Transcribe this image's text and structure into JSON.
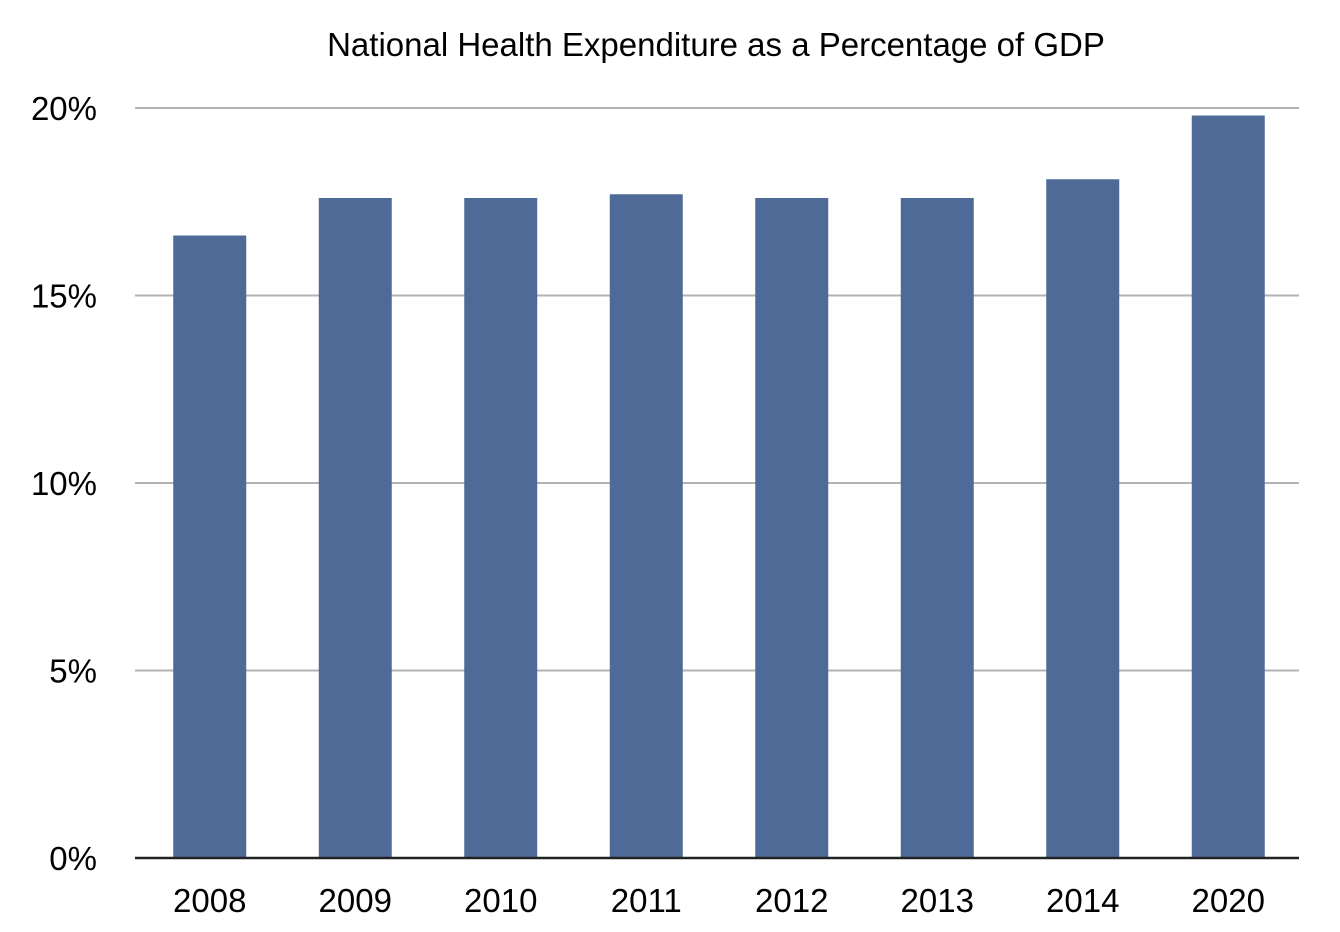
{
  "chart_data": {
    "type": "bar",
    "title": "National Health Expenditure as a Percentage of GDP",
    "xlabel": "",
    "ylabel": "",
    "categories": [
      "2008",
      "2009",
      "2010",
      "2011",
      "2012",
      "2013",
      "2014",
      "2020"
    ],
    "values": [
      16.6,
      17.6,
      17.6,
      17.7,
      17.6,
      17.6,
      18.1,
      19.8
    ],
    "ylim": [
      0,
      20
    ],
    "yticks": [
      0,
      5,
      10,
      15,
      20
    ],
    "ytick_labels": [
      "0%",
      "5%",
      "10%",
      "15%",
      "20%"
    ],
    "grid": true,
    "legend": "none",
    "bar_color": "#4e6b98"
  }
}
